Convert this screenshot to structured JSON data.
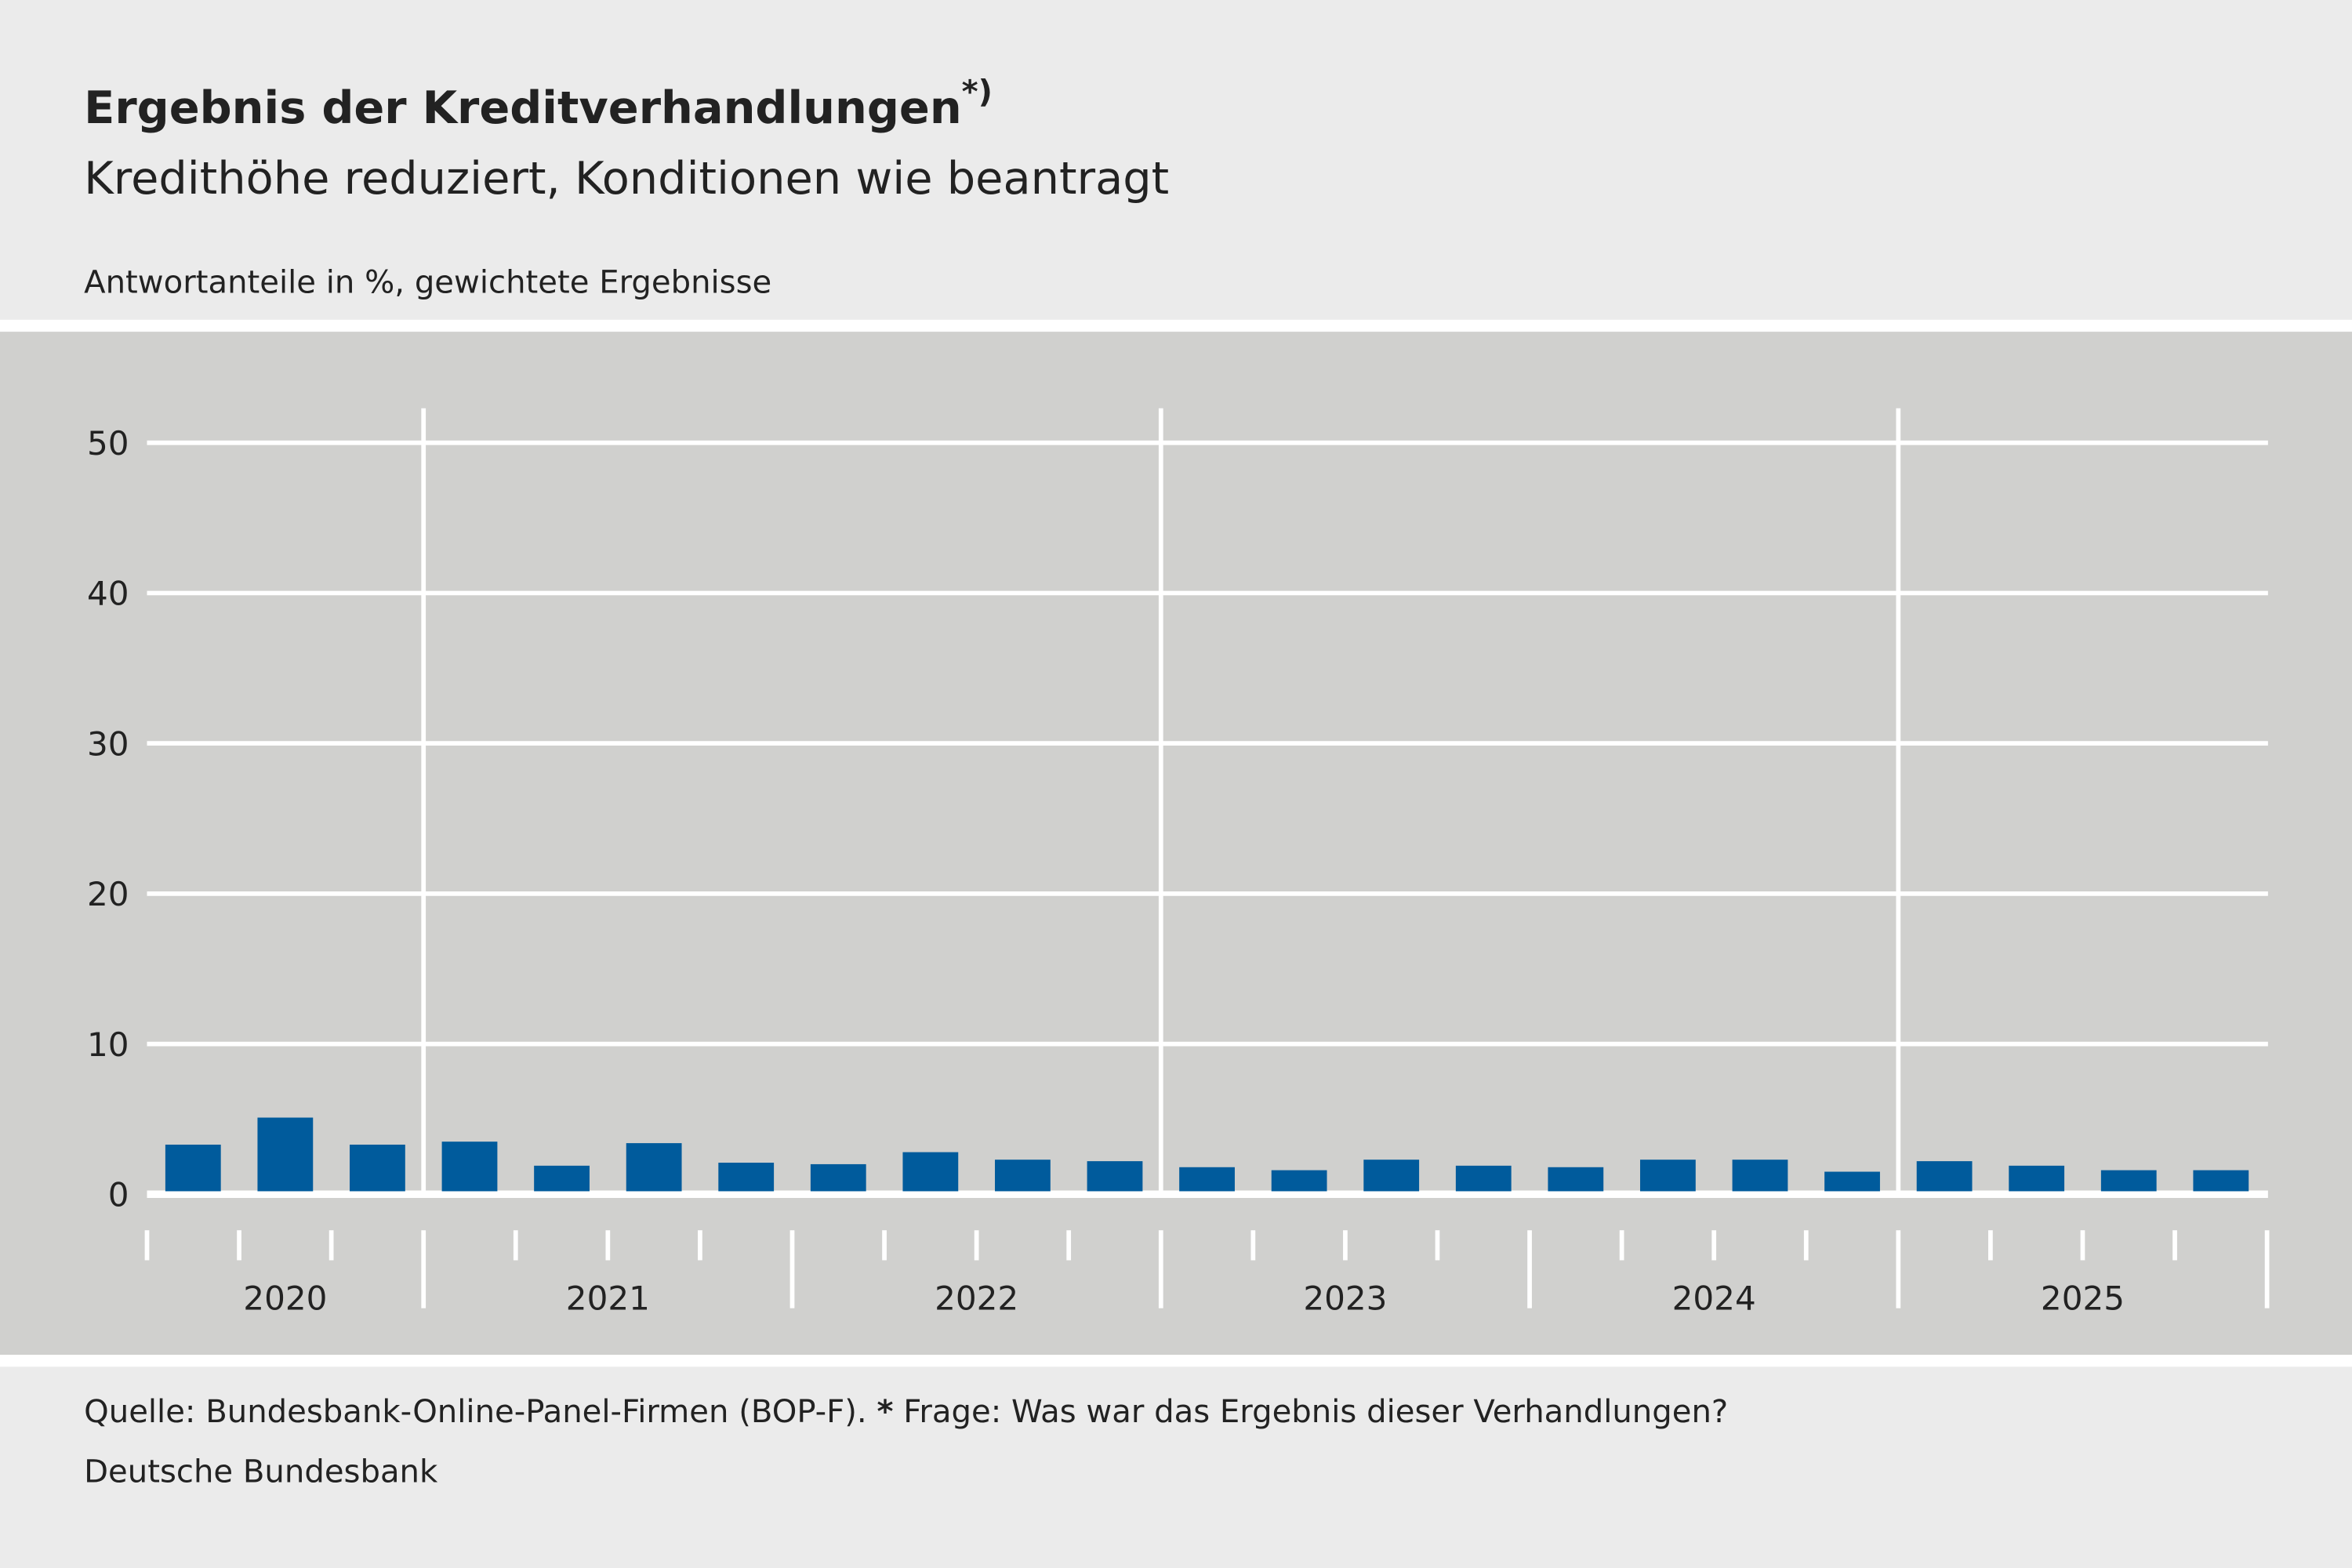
{
  "title": "Ergebnis der Kreditverhandlungen",
  "title_note": "*)",
  "subtitle": "Kredithöhe reduziert, Konditionen wie beantragt",
  "unit_label": "Antwortanteile in %, gewichtete Ergebnisse",
  "footer": {
    "source": "Quelle: Bundesbank-Online-Panel-Firmen (BOP-F).",
    "note_marker": "*",
    "note": "Frage: Was war das Ergebnis dieser Verhandlungen?",
    "publisher": "Deutsche Bundesbank"
  },
  "colors": {
    "bar": "#005b9c",
    "plot_bg": "#d0d0ce",
    "page_bg": "#ebebeb",
    "grid": "#ffffff"
  },
  "chart_data": {
    "type": "bar",
    "title": "Ergebnis der Kreditverhandlungen",
    "subtitle": "Kredithöhe reduziert, Konditionen wie beantragt",
    "ylabel": "Antwortanteile in %, gewichtete Ergebnisse",
    "ylim": [
      0,
      50
    ],
    "yticks": [
      "0",
      "10",
      "20",
      "30",
      "40",
      "50"
    ],
    "grid": true,
    "years": [
      {
        "label": "2020",
        "quarters": 3
      },
      {
        "label": "2021",
        "quarters": 4
      },
      {
        "label": "2022",
        "quarters": 4
      },
      {
        "label": "2023",
        "quarters": 4
      },
      {
        "label": "2024",
        "quarters": 4
      },
      {
        "label": "2025",
        "quarters": 4
      }
    ],
    "categories": [
      "2020 Q2",
      "2020 Q3",
      "2020 Q4",
      "2021 Q1",
      "2021 Q2",
      "2021 Q3",
      "2021 Q4",
      "2022 Q1",
      "2022 Q2",
      "2022 Q3",
      "2022 Q4",
      "2023 Q1",
      "2023 Q2",
      "2023 Q3",
      "2023 Q4",
      "2024 Q1",
      "2024 Q2",
      "2024 Q3",
      "2024 Q4",
      "2025 Q1",
      "2025 Q2",
      "2025 Q3",
      "2025 Q4"
    ],
    "values": [
      3.3,
      5.1,
      3.3,
      3.5,
      1.9,
      3.4,
      2.1,
      2.0,
      2.8,
      2.3,
      2.2,
      1.8,
      1.6,
      2.3,
      1.9,
      1.8,
      2.3,
      2.3,
      1.5,
      2.2,
      1.9,
      1.6,
      1.6
    ]
  }
}
